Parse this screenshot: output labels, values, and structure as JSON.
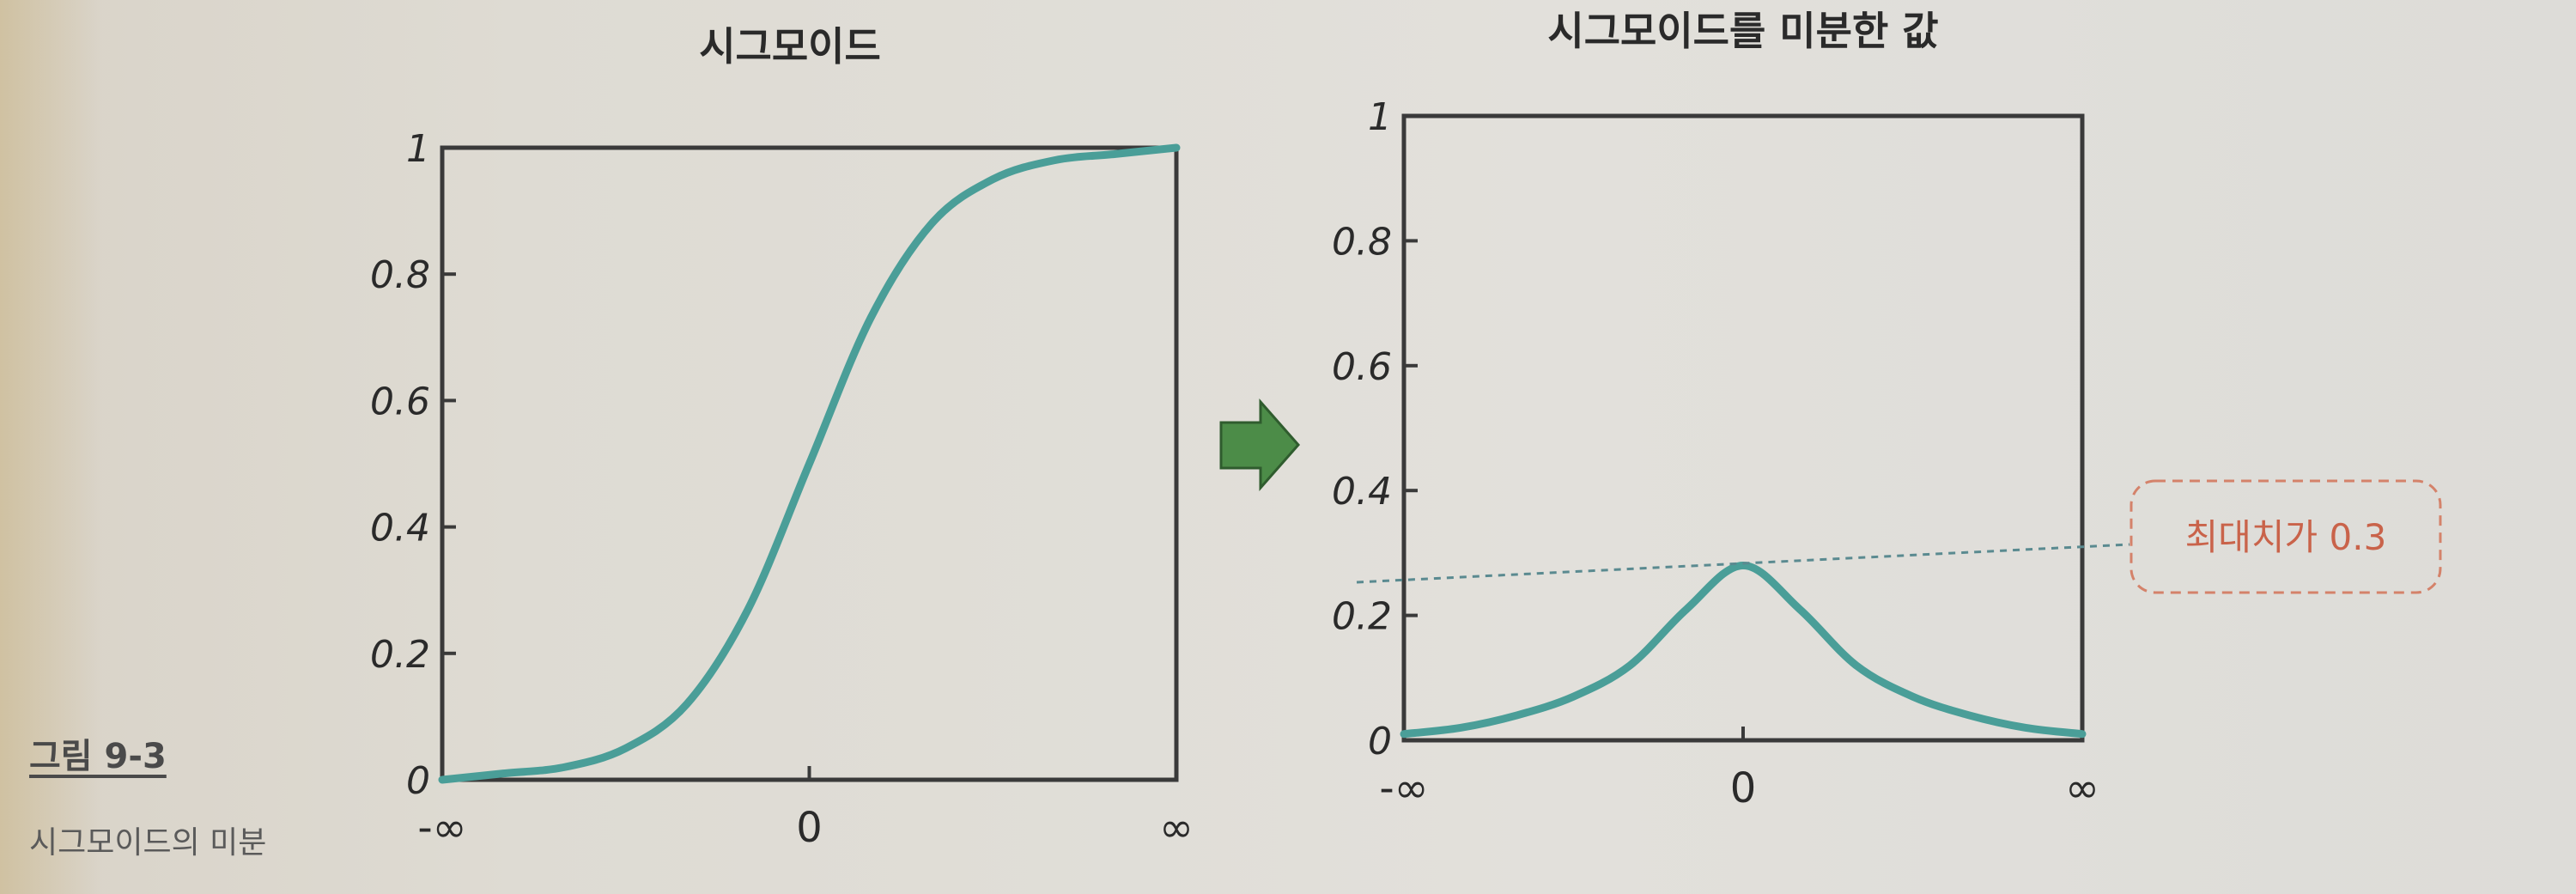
{
  "figure": {
    "caption_title": "그림 9-3",
    "caption_subtitle": "시그모이드의 미분"
  },
  "callout": {
    "text": "최대치가 0.3"
  },
  "colors": {
    "curve": "#4a9e98",
    "axis": "#3a3a3a",
    "arrow": "#4c8c48",
    "callout": "#d4826a",
    "dashed": "#5a8a90"
  },
  "chart_data": [
    {
      "type": "line",
      "title": "시그모이드",
      "x_ticks": [
        "-∞",
        "0",
        "∞"
      ],
      "y_ticks": [
        "0",
        "0.2",
        "0.4",
        "0.6",
        "0.8",
        "1"
      ],
      "ylim": [
        0,
        1
      ],
      "xlim": [
        -6,
        6
      ],
      "x": [
        -6,
        -5,
        -4,
        -3,
        -2,
        -1,
        0,
        1,
        2,
        3,
        4,
        5,
        6
      ],
      "y": [
        0.0,
        0.01,
        0.02,
        0.05,
        0.12,
        0.27,
        0.5,
        0.73,
        0.88,
        0.95,
        0.98,
        0.99,
        1.0
      ]
    },
    {
      "type": "line",
      "title": "시그모이드를 미분한 값",
      "x_ticks": [
        "-∞",
        "0",
        "∞"
      ],
      "y_ticks": [
        "0",
        "0.2",
        "0.4",
        "0.6",
        "0.8",
        "1"
      ],
      "ylim": [
        0,
        1
      ],
      "xlim": [
        -6,
        6
      ],
      "x": [
        -6,
        -5,
        -4,
        -3,
        -2,
        -1,
        0,
        1,
        2,
        3,
        4,
        5,
        6
      ],
      "y": [
        0.01,
        0.02,
        0.04,
        0.07,
        0.12,
        0.21,
        0.28,
        0.21,
        0.12,
        0.07,
        0.04,
        0.02,
        0.01
      ],
      "annotation": "최대치가 0.3"
    }
  ]
}
